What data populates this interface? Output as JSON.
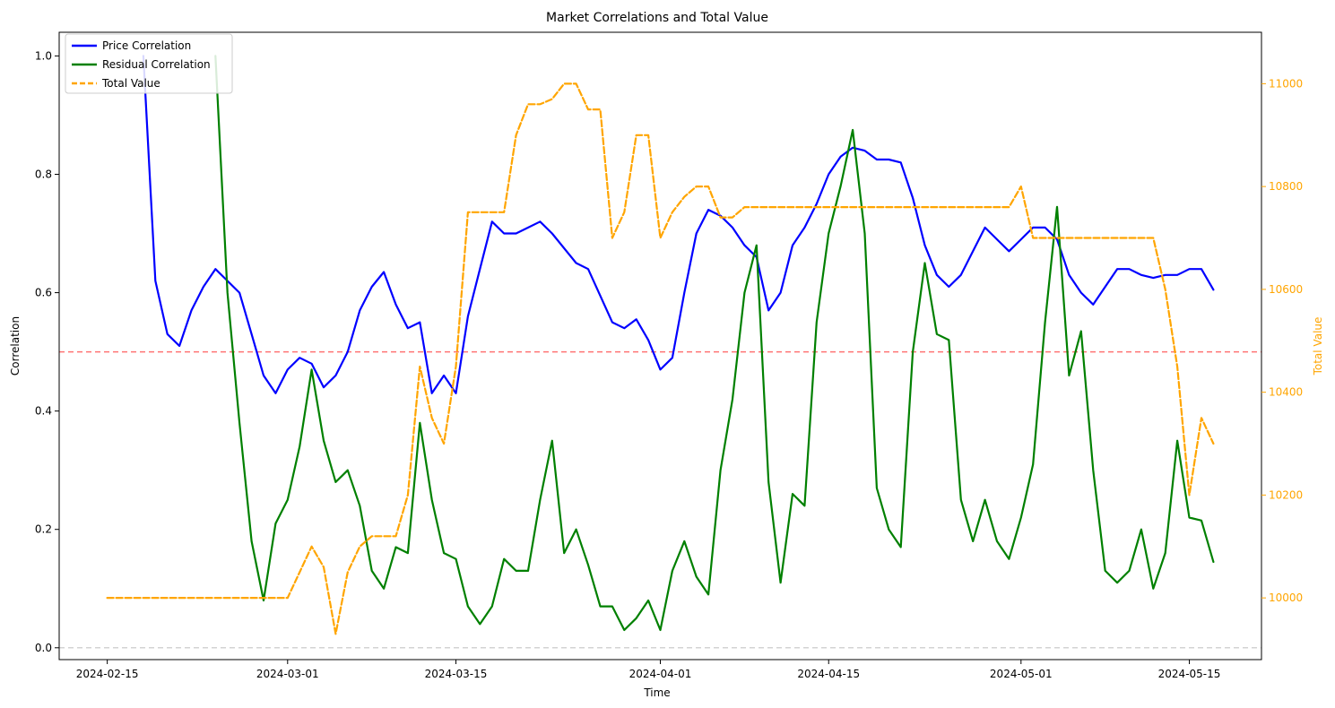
{
  "chart_data": {
    "type": "line",
    "title": "Market Correlations and Total Value",
    "xlabel": "Time",
    "ylabel_left": "Correlation",
    "ylabel_right": "Total Value",
    "xlim": [
      "2024-02-11",
      "2024-05-21"
    ],
    "x_ticks": [
      "2024-02-15",
      "2024-03-01",
      "2024-03-15",
      "2024-04-01",
      "2024-04-15",
      "2024-05-01",
      "2024-05-15"
    ],
    "ylim_left": [
      -0.02,
      1.04
    ],
    "y_ticks_left": [
      "0.0",
      "0.2",
      "0.4",
      "0.6",
      "0.8",
      "1.0"
    ],
    "ylim_right": [
      9880,
      11100
    ],
    "y_ticks_right": [
      "10000",
      "10200",
      "10400",
      "10600",
      "10800",
      "11000"
    ],
    "reference_lines": [
      {
        "y": 0.5,
        "axis": "left",
        "color": "#ff0000",
        "style": "dashed"
      },
      {
        "y": 0.0,
        "axis": "left",
        "color": "#808080",
        "style": "dashed"
      }
    ],
    "legend_position": "upper-left",
    "colors": {
      "price": "#0000ff",
      "residual": "#008000",
      "total": "#ffa500",
      "accent_right": "#ffa500"
    },
    "series": [
      {
        "name": "Price Correlation",
        "axis": "left",
        "color": "#0000ff",
        "style": "solid",
        "points": [
          [
            "2024-02-18",
            1.0
          ],
          [
            "2024-02-19",
            0.62
          ],
          [
            "2024-02-20",
            0.53
          ],
          [
            "2024-02-21",
            0.51
          ],
          [
            "2024-02-22",
            0.57
          ],
          [
            "2024-02-23",
            0.61
          ],
          [
            "2024-02-24",
            0.64
          ],
          [
            "2024-02-25",
            0.62
          ],
          [
            "2024-02-26",
            0.6
          ],
          [
            "2024-02-27",
            0.53
          ],
          [
            "2024-02-28",
            0.46
          ],
          [
            "2024-02-29",
            0.43
          ],
          [
            "2024-03-01",
            0.47
          ],
          [
            "2024-03-02",
            0.49
          ],
          [
            "2024-03-03",
            0.48
          ],
          [
            "2024-03-04",
            0.44
          ],
          [
            "2024-03-05",
            0.46
          ],
          [
            "2024-03-06",
            0.5
          ],
          [
            "2024-03-07",
            0.57
          ],
          [
            "2024-03-08",
            0.61
          ],
          [
            "2024-03-09",
            0.635
          ],
          [
            "2024-03-10",
            0.58
          ],
          [
            "2024-03-11",
            0.54
          ],
          [
            "2024-03-12",
            0.55
          ],
          [
            "2024-03-13",
            0.43
          ],
          [
            "2024-03-14",
            0.46
          ],
          [
            "2024-03-15",
            0.43
          ],
          [
            "2024-03-16",
            0.56
          ],
          [
            "2024-03-17",
            0.64
          ],
          [
            "2024-03-18",
            0.72
          ],
          [
            "2024-03-19",
            0.7
          ],
          [
            "2024-03-20",
            0.7
          ],
          [
            "2024-03-22",
            0.72
          ],
          [
            "2024-03-23",
            0.7
          ],
          [
            "2024-03-25",
            0.65
          ],
          [
            "2024-03-26",
            0.64
          ],
          [
            "2024-03-28",
            0.55
          ],
          [
            "2024-03-29",
            0.54
          ],
          [
            "2024-03-30",
            0.555
          ],
          [
            "2024-03-31",
            0.52
          ],
          [
            "2024-04-01",
            0.47
          ],
          [
            "2024-04-02",
            0.49
          ],
          [
            "2024-04-03",
            0.6
          ],
          [
            "2024-04-04",
            0.7
          ],
          [
            "2024-04-05",
            0.74
          ],
          [
            "2024-04-06",
            0.73
          ],
          [
            "2024-04-07",
            0.71
          ],
          [
            "2024-04-08",
            0.68
          ],
          [
            "2024-04-09",
            0.66
          ],
          [
            "2024-04-10",
            0.57
          ],
          [
            "2024-04-11",
            0.6
          ],
          [
            "2024-04-12",
            0.68
          ],
          [
            "2024-04-13",
            0.71
          ],
          [
            "2024-04-14",
            0.75
          ],
          [
            "2024-04-15",
            0.8
          ],
          [
            "2024-04-16",
            0.83
          ],
          [
            "2024-04-17",
            0.845
          ],
          [
            "2024-04-18",
            0.84
          ],
          [
            "2024-04-19",
            0.825
          ],
          [
            "2024-04-20",
            0.825
          ],
          [
            "2024-04-21",
            0.82
          ],
          [
            "2024-04-22",
            0.76
          ],
          [
            "2024-04-23",
            0.68
          ],
          [
            "2024-04-24",
            0.63
          ],
          [
            "2024-04-25",
            0.61
          ],
          [
            "2024-04-26",
            0.63
          ],
          [
            "2024-04-27",
            0.67
          ],
          [
            "2024-04-28",
            0.71
          ],
          [
            "2024-04-29",
            0.69
          ],
          [
            "2024-04-30",
            0.67
          ],
          [
            "2024-05-01",
            0.69
          ],
          [
            "2024-05-02",
            0.71
          ],
          [
            "2024-05-03",
            0.71
          ],
          [
            "2024-05-04",
            0.69
          ],
          [
            "2024-05-05",
            0.63
          ],
          [
            "2024-05-06",
            0.6
          ],
          [
            "2024-05-07",
            0.58
          ],
          [
            "2024-05-08",
            0.61
          ],
          [
            "2024-05-09",
            0.64
          ],
          [
            "2024-05-10",
            0.64
          ],
          [
            "2024-05-11",
            0.63
          ],
          [
            "2024-05-12",
            0.625
          ],
          [
            "2024-05-13",
            0.63
          ],
          [
            "2024-05-14",
            0.63
          ],
          [
            "2024-05-15",
            0.64
          ],
          [
            "2024-05-16",
            0.64
          ],
          [
            "2024-05-17",
            0.605
          ]
        ]
      },
      {
        "name": "Residual Correlation",
        "axis": "left",
        "color": "#008000",
        "style": "solid",
        "points": [
          [
            "2024-02-24",
            1.0
          ],
          [
            "2024-02-25",
            0.6
          ],
          [
            "2024-02-26",
            0.38
          ],
          [
            "2024-02-27",
            0.18
          ],
          [
            "2024-02-28",
            0.08
          ],
          [
            "2024-02-29",
            0.21
          ],
          [
            "2024-03-01",
            0.25
          ],
          [
            "2024-03-02",
            0.34
          ],
          [
            "2024-03-03",
            0.47
          ],
          [
            "2024-03-04",
            0.35
          ],
          [
            "2024-03-05",
            0.28
          ],
          [
            "2024-03-06",
            0.3
          ],
          [
            "2024-03-07",
            0.24
          ],
          [
            "2024-03-08",
            0.13
          ],
          [
            "2024-03-09",
            0.1
          ],
          [
            "2024-03-10",
            0.17
          ],
          [
            "2024-03-11",
            0.16
          ],
          [
            "2024-03-12",
            0.38
          ],
          [
            "2024-03-13",
            0.25
          ],
          [
            "2024-03-14",
            0.16
          ],
          [
            "2024-03-15",
            0.15
          ],
          [
            "2024-03-16",
            0.07
          ],
          [
            "2024-03-17",
            0.04
          ],
          [
            "2024-03-18",
            0.07
          ],
          [
            "2024-03-19",
            0.15
          ],
          [
            "2024-03-20",
            0.13
          ],
          [
            "2024-03-21",
            0.13
          ],
          [
            "2024-03-22",
            0.25
          ],
          [
            "2024-03-23",
            0.35
          ],
          [
            "2024-03-24",
            0.16
          ],
          [
            "2024-03-25",
            0.2
          ],
          [
            "2024-03-26",
            0.14
          ],
          [
            "2024-03-27",
            0.07
          ],
          [
            "2024-03-28",
            0.07
          ],
          [
            "2024-03-29",
            0.03
          ],
          [
            "2024-03-30",
            0.05
          ],
          [
            "2024-03-31",
            0.08
          ],
          [
            "2024-04-01",
            0.03
          ],
          [
            "2024-04-02",
            0.13
          ],
          [
            "2024-04-03",
            0.18
          ],
          [
            "2024-04-04",
            0.12
          ],
          [
            "2024-04-05",
            0.09
          ],
          [
            "2024-04-06",
            0.3
          ],
          [
            "2024-04-07",
            0.42
          ],
          [
            "2024-04-08",
            0.6
          ],
          [
            "2024-04-09",
            0.68
          ],
          [
            "2024-04-10",
            0.28
          ],
          [
            "2024-04-11",
            0.11
          ],
          [
            "2024-04-12",
            0.26
          ],
          [
            "2024-04-13",
            0.24
          ],
          [
            "2024-04-14",
            0.55
          ],
          [
            "2024-04-15",
            0.7
          ],
          [
            "2024-04-16",
            0.78
          ],
          [
            "2024-04-17",
            0.875
          ],
          [
            "2024-04-18",
            0.7
          ],
          [
            "2024-04-19",
            0.27
          ],
          [
            "2024-04-20",
            0.2
          ],
          [
            "2024-04-21",
            0.17
          ],
          [
            "2024-04-22",
            0.5
          ],
          [
            "2024-04-23",
            0.65
          ],
          [
            "2024-04-24",
            0.53
          ],
          [
            "2024-04-25",
            0.52
          ],
          [
            "2024-04-26",
            0.25
          ],
          [
            "2024-04-27",
            0.18
          ],
          [
            "2024-04-28",
            0.25
          ],
          [
            "2024-04-29",
            0.18
          ],
          [
            "2024-04-30",
            0.15
          ],
          [
            "2024-05-01",
            0.22
          ],
          [
            "2024-05-02",
            0.31
          ],
          [
            "2024-05-03",
            0.55
          ],
          [
            "2024-05-04",
            0.745
          ],
          [
            "2024-05-05",
            0.46
          ],
          [
            "2024-05-06",
            0.535
          ],
          [
            "2024-05-07",
            0.3
          ],
          [
            "2024-05-08",
            0.13
          ],
          [
            "2024-05-09",
            0.11
          ],
          [
            "2024-05-10",
            0.13
          ],
          [
            "2024-05-11",
            0.2
          ],
          [
            "2024-05-12",
            0.1
          ],
          [
            "2024-05-13",
            0.16
          ],
          [
            "2024-05-14",
            0.35
          ],
          [
            "2024-05-15",
            0.22
          ],
          [
            "2024-05-16",
            0.215
          ],
          [
            "2024-05-17",
            0.145
          ]
        ]
      },
      {
        "name": "Total Value",
        "axis": "right",
        "color": "#ffa500",
        "style": "dashed",
        "points": [
          [
            "2024-02-15",
            10000
          ],
          [
            "2024-03-01",
            10000
          ],
          [
            "2024-03-02",
            10050
          ],
          [
            "2024-03-03",
            10100
          ],
          [
            "2024-03-04",
            10060
          ],
          [
            "2024-03-05",
            9930
          ],
          [
            "2024-03-06",
            10050
          ],
          [
            "2024-03-07",
            10100
          ],
          [
            "2024-03-08",
            10120
          ],
          [
            "2024-03-09",
            10120
          ],
          [
            "2024-03-10",
            10120
          ],
          [
            "2024-03-11",
            10200
          ],
          [
            "2024-03-12",
            10450
          ],
          [
            "2024-03-13",
            10350
          ],
          [
            "2024-03-14",
            10300
          ],
          [
            "2024-03-15",
            10450
          ],
          [
            "2024-03-16",
            10750
          ],
          [
            "2024-03-17",
            10750
          ],
          [
            "2024-03-18",
            10750
          ],
          [
            "2024-03-19",
            10750
          ],
          [
            "2024-03-20",
            10900
          ],
          [
            "2024-03-21",
            10960
          ],
          [
            "2024-03-22",
            10960
          ],
          [
            "2024-03-23",
            10970
          ],
          [
            "2024-03-24",
            11000
          ],
          [
            "2024-03-25",
            11000
          ],
          [
            "2024-03-26",
            10950
          ],
          [
            "2024-03-27",
            10950
          ],
          [
            "2024-03-28",
            10700
          ],
          [
            "2024-03-29",
            10750
          ],
          [
            "2024-03-30",
            10900
          ],
          [
            "2024-03-31",
            10900
          ],
          [
            "2024-04-01",
            10700
          ],
          [
            "2024-04-02",
            10750
          ],
          [
            "2024-04-03",
            10780
          ],
          [
            "2024-04-04",
            10800
          ],
          [
            "2024-04-05",
            10800
          ],
          [
            "2024-04-06",
            10740
          ],
          [
            "2024-04-07",
            10740
          ],
          [
            "2024-04-08",
            10760
          ],
          [
            "2024-04-20",
            10760
          ],
          [
            "2024-04-30",
            10760
          ],
          [
            "2024-05-01",
            10800
          ],
          [
            "2024-05-02",
            10700
          ],
          [
            "2024-05-12",
            10700
          ],
          [
            "2024-05-13",
            10600
          ],
          [
            "2024-05-14",
            10450
          ],
          [
            "2024-05-15",
            10200
          ],
          [
            "2024-05-16",
            10350
          ],
          [
            "2024-05-17",
            10300
          ]
        ]
      }
    ]
  }
}
